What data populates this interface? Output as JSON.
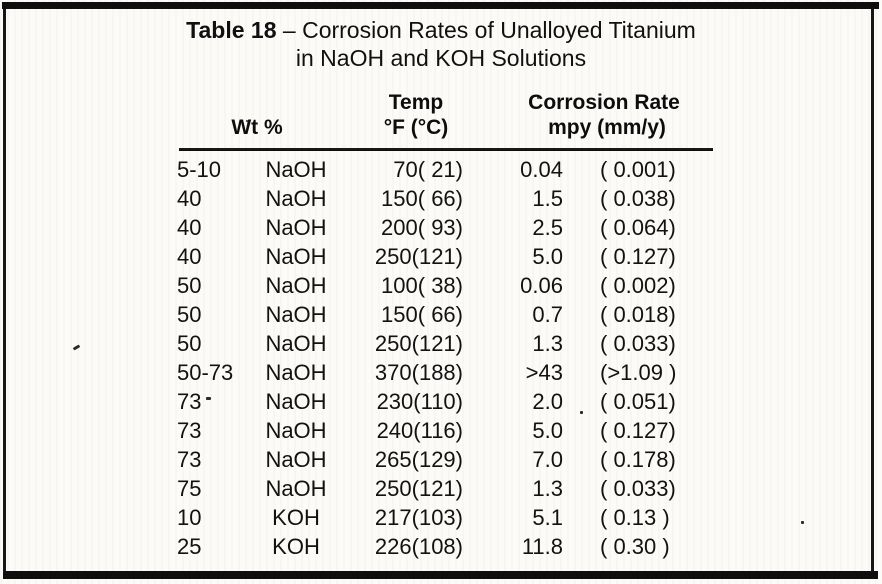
{
  "title": {
    "label_bold": "Table 18",
    "label_rest": " – Corrosion Rates of Unalloyed Titanium",
    "line2": "in NaOH and KOH Solutions"
  },
  "table": {
    "headers": {
      "wt": "Wt %",
      "temp_line1": "Temp",
      "temp_line2": "°F (°C)",
      "rate_line1": "Corrosion Rate",
      "rate_line2": "mpy (mm/y)"
    },
    "rows": [
      {
        "wt": "5-10",
        "solution": "NaOH",
        "temp": "70( 21)",
        "mpy": "0.04",
        "mmy": "( 0.001)"
      },
      {
        "wt": "40",
        "solution": "NaOH",
        "temp": "150( 66)",
        "mpy": "1.5",
        "mmy": "( 0.038)"
      },
      {
        "wt": "40",
        "solution": "NaOH",
        "temp": "200( 93)",
        "mpy": "2.5",
        "mmy": "( 0.064)"
      },
      {
        "wt": "40",
        "solution": "NaOH",
        "temp": "250(121)",
        "mpy": "5.0",
        "mmy": "( 0.127)"
      },
      {
        "wt": "50",
        "solution": "NaOH",
        "temp": "100( 38)",
        "mpy": "0.06",
        "mmy": "( 0.002)"
      },
      {
        "wt": "50",
        "solution": "NaOH",
        "temp": "150( 66)",
        "mpy": "0.7",
        "mmy": "( 0.018)"
      },
      {
        "wt": "50",
        "solution": "NaOH",
        "temp": "250(121)",
        "mpy": "1.3",
        "mmy": "( 0.033)"
      },
      {
        "wt": "50-73",
        "solution": "NaOH",
        "temp": "370(188)",
        "mpy": ">43",
        "mmy": "(>1.09 )"
      },
      {
        "wt": "73",
        "solution": "NaOH",
        "temp": "230(110)",
        "mpy": "2.0",
        "mmy": "( 0.051)"
      },
      {
        "wt": "73",
        "solution": "NaOH",
        "temp": "240(116)",
        "mpy": "5.0",
        "mmy": "( 0.127)"
      },
      {
        "wt": "73",
        "solution": "NaOH",
        "temp": "265(129)",
        "mpy": "7.0",
        "mmy": "( 0.178)"
      },
      {
        "wt": "75",
        "solution": "NaOH",
        "temp": "250(121)",
        "mpy": "1.3",
        "mmy": "( 0.033)"
      },
      {
        "wt": "10",
        "solution": "KOH",
        "temp": "217(103)",
        "mpy": "5.1",
        "mmy": "( 0.13 )"
      },
      {
        "wt": "25",
        "solution": "KOH",
        "temp": "226(108)",
        "mpy": "11.8",
        "mmy": "( 0.30 )"
      }
    ]
  },
  "colors": {
    "ink": "#141414",
    "paper": "#fcfbf8",
    "frame": "#0e0e0e"
  }
}
